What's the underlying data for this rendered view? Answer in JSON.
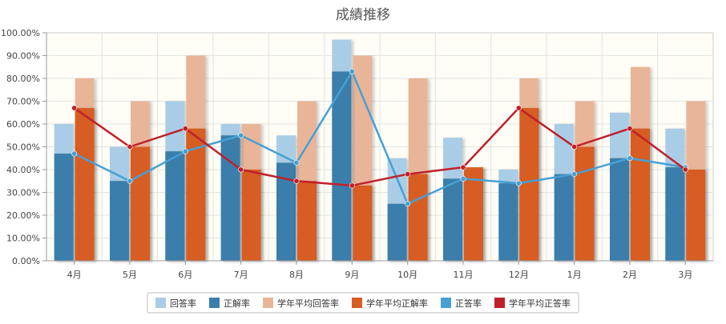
{
  "chart_data": {
    "type": "bar",
    "title": "成績推移",
    "categories": [
      "4月",
      "5月",
      "6月",
      "7月",
      "8月",
      "9月",
      "10月",
      "11月",
      "12月",
      "1月",
      "2月",
      "3月"
    ],
    "y_ticks": [
      "0.00%",
      "10.00%",
      "20.00%",
      "30.00%",
      "40.00%",
      "50.00%",
      "60.00%",
      "70.00%",
      "80.00%",
      "90.00%",
      "100.00%"
    ],
    "ylim": [
      0,
      100
    ],
    "grid": true,
    "legend_position": "bottom",
    "series": [
      {
        "name": "回答率",
        "kind": "bar",
        "group": 0,
        "layer": "back",
        "color": "#a9cde6",
        "values": [
          60,
          50,
          70,
          60,
          55,
          97,
          45,
          54,
          40,
          60,
          65,
          58
        ]
      },
      {
        "name": "正解率",
        "kind": "bar",
        "group": 0,
        "layer": "front",
        "color": "#3a7eab",
        "values": [
          47,
          35,
          48,
          55,
          43,
          83,
          25,
          36,
          34,
          38,
          45,
          41
        ]
      },
      {
        "name": "学年平均回答率",
        "kind": "bar",
        "group": 1,
        "layer": "back",
        "color": "#e9b598",
        "values": [
          80,
          70,
          90,
          60,
          70,
          90,
          80,
          41,
          80,
          70,
          85,
          70
        ]
      },
      {
        "name": "学年平均正解率",
        "kind": "bar",
        "group": 1,
        "layer": "front",
        "color": "#d75d21",
        "values": [
          67,
          50,
          58,
          40,
          35,
          33,
          38,
          41,
          67,
          50,
          58,
          40
        ]
      },
      {
        "name": "正答率",
        "kind": "line",
        "color": "#46a0d4",
        "values": [
          47,
          35,
          48,
          55,
          43,
          83,
          25,
          36,
          34,
          38,
          45,
          41
        ]
      },
      {
        "name": "学年平均正答率",
        "kind": "line",
        "color": "#c0202a",
        "values": [
          67,
          50,
          58,
          40,
          35,
          33,
          38,
          41,
          67,
          50,
          58,
          40
        ]
      }
    ]
  }
}
